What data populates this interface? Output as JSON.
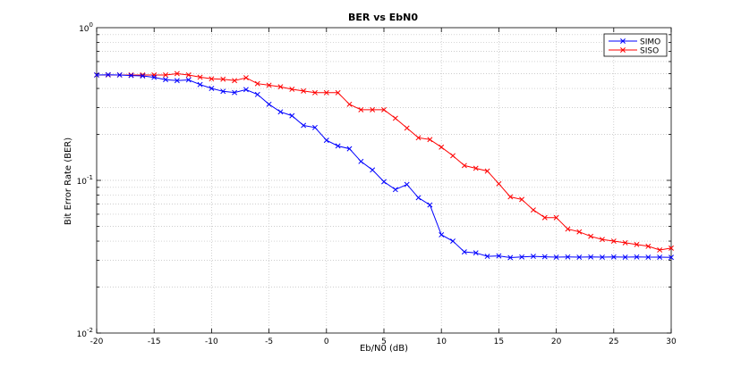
{
  "chart_data": {
    "type": "line",
    "title": "BER vs EbN0",
    "xlabel": "Eb/N0 (dB)",
    "ylabel": "Bit Error Rate (BER)",
    "xlim": [
      -20,
      30
    ],
    "ylim": [
      0.01,
      1
    ],
    "yscale": "log",
    "grid": true,
    "legend_position": "top-right",
    "x_ticks": [
      -20,
      -15,
      -10,
      -5,
      0,
      5,
      10,
      15,
      20,
      25,
      30
    ],
    "x_tick_labels": [
      "-20",
      "-15",
      "-10",
      "-5",
      "0",
      "5",
      "10",
      "15",
      "20",
      "25",
      "30"
    ],
    "y_ticks": [
      {
        "value": 1,
        "base": "10",
        "exp": "0"
      },
      {
        "value": 0.1,
        "base": "10",
        "exp": "-1"
      },
      {
        "value": 0.01,
        "base": "10",
        "exp": "-2"
      }
    ],
    "x": [
      -20,
      -19,
      -18,
      -17,
      -16,
      -15,
      -14,
      -13,
      -12,
      -11,
      -10,
      -9,
      -8,
      -7,
      -6,
      -5,
      -4,
      -3,
      -2,
      -1,
      0,
      1,
      2,
      3,
      4,
      5,
      6,
      7,
      8,
      9,
      10,
      11,
      12,
      13,
      14,
      15,
      16,
      17,
      18,
      19,
      20,
      21,
      22,
      23,
      24,
      25,
      26,
      27,
      28,
      29,
      30
    ],
    "series": [
      {
        "name": "SIMO",
        "color": "#0000ff",
        "marker": "x",
        "values": [
          0.49,
          0.492,
          0.49,
          0.486,
          0.483,
          0.473,
          0.457,
          0.45,
          0.455,
          0.424,
          0.4,
          0.383,
          0.376,
          0.393,
          0.365,
          0.315,
          0.281,
          0.265,
          0.229,
          0.222,
          0.183,
          0.168,
          0.161,
          0.133,
          0.117,
          0.098,
          0.087,
          0.094,
          0.077,
          0.069,
          0.044,
          0.04,
          0.034,
          0.0335,
          0.0318,
          0.032,
          0.0312,
          0.0315,
          0.0318,
          0.0316,
          0.0314,
          0.0315,
          0.0314,
          0.0315,
          0.0314,
          0.0315,
          0.0314,
          0.0315,
          0.0314,
          0.0314,
          0.0313
        ]
      },
      {
        "name": "SISO",
        "color": "#ff0000",
        "marker": "x",
        "values": [
          0.49,
          0.49,
          0.49,
          0.49,
          0.49,
          0.49,
          0.49,
          0.5,
          0.49,
          0.474,
          0.462,
          0.46,
          0.45,
          0.47,
          0.43,
          0.42,
          0.41,
          0.395,
          0.385,
          0.375,
          0.375,
          0.375,
          0.315,
          0.29,
          0.29,
          0.29,
          0.255,
          0.22,
          0.19,
          0.185,
          0.165,
          0.145,
          0.125,
          0.12,
          0.115,
          0.095,
          0.078,
          0.075,
          0.064,
          0.057,
          0.057,
          0.048,
          0.046,
          0.043,
          0.041,
          0.04,
          0.039,
          0.038,
          0.037,
          0.035,
          0.036
        ]
      }
    ]
  }
}
